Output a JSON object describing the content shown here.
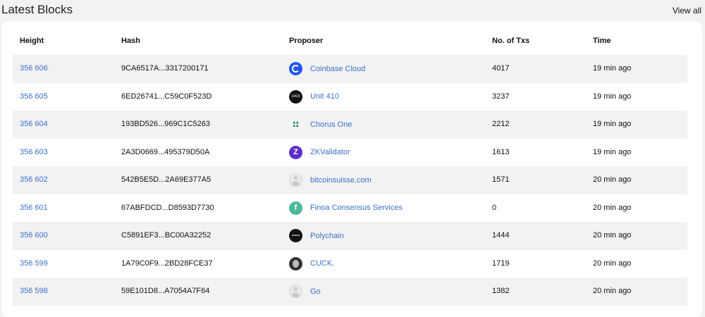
{
  "header": {
    "title": "Latest Blocks",
    "view_all": "View all"
  },
  "table": {
    "columns": [
      "Height",
      "Hash",
      "Proposer",
      "No. of Txs",
      "Time"
    ],
    "rows": [
      {
        "height": "356 606",
        "hash": "9CA6517A...3317200171",
        "proposer": "Coinbase Cloud",
        "logo": "coinbase-logo-icon",
        "txs": "4017",
        "time": "19 min ago"
      },
      {
        "height": "356 605",
        "hash": "6ED26741...C59C0F523D",
        "proposer": "Unit 410",
        "logo": "unit410-logo-icon",
        "txs": "3237",
        "time": "19 min ago"
      },
      {
        "height": "356 604",
        "hash": "193BD526...969C1C5263",
        "proposer": "Chorus One",
        "logo": "chorus-one-logo-icon",
        "txs": "2212",
        "time": "19 min ago"
      },
      {
        "height": "356 603",
        "hash": "2A3D0669...495379D50A",
        "proposer": "ZKValidator",
        "logo": "zkvalidator-logo-icon",
        "txs": "1613",
        "time": "19 min ago"
      },
      {
        "height": "356 602",
        "hash": "542B5E5D...2A69E377A5",
        "proposer": "bitcoinsuisse.com",
        "logo": "default-avatar-icon",
        "txs": "1571",
        "time": "20 min ago"
      },
      {
        "height": "356 601",
        "hash": "67ABFDCD...D8593D7730",
        "proposer": "Finoa Consensus Services",
        "logo": "finoa-logo-icon",
        "txs": "0",
        "time": "20 min ago"
      },
      {
        "height": "356 600",
        "hash": "C5891EF3...BC00A32252",
        "proposer": "Polychain",
        "logo": "polychain-logo-icon",
        "txs": "1444",
        "time": "20 min ago"
      },
      {
        "height": "356 599",
        "hash": "1A79C0F9...2BD28FCE37",
        "proposer": "CUCK.",
        "logo": "cuck-logo-icon",
        "txs": "1719",
        "time": "20 min ago"
      },
      {
        "height": "356 598",
        "hash": "59E101D8...A7054A7F64",
        "proposer": "Go",
        "logo": "default-avatar-icon",
        "txs": "1382",
        "time": "20 min ago"
      }
    ]
  },
  "colors": {
    "link": "#3b6fc9",
    "row_shade": "#f2f2f2",
    "background": "#f2f2f4"
  }
}
